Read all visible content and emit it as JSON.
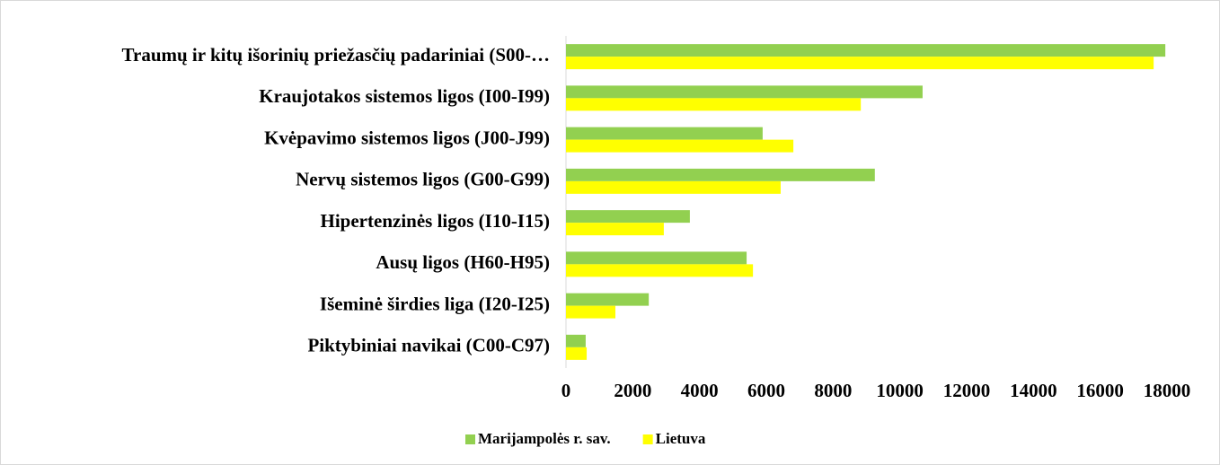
{
  "chart_data": {
    "type": "bar",
    "orientation": "horizontal",
    "categories": [
      "Traumų ir kitų išorinių priežasčių padariniai (S00-…",
      "Kraujotakos sistemos ligos (I00-I99)",
      "Kvėpavimo sistemos ligos (J00-J99)",
      "Nervų sistemos ligos (G00-G99)",
      "Hipertenzinės ligos (I10-I15)",
      "Ausų ligos (H60-H95)",
      "Išeminė širdies liga (I20-I25)",
      "Piktybiniai navikai (C00-C97)"
    ],
    "series": [
      {
        "name": "Marijampolės r. sav.",
        "color": "#92d050",
        "values": [
          17950,
          10680,
          5890,
          9250,
          3710,
          5410,
          2480,
          590
        ]
      },
      {
        "name": "Lietuva",
        "color": "#ffff00",
        "values": [
          17600,
          8830,
          6810,
          6430,
          2930,
          5600,
          1480,
          620
        ]
      }
    ],
    "xlim": [
      0,
      18000
    ],
    "xticks": [
      0,
      2000,
      4000,
      6000,
      8000,
      10000,
      12000,
      14000,
      16000,
      18000
    ],
    "grid": false,
    "legend": "bottom"
  }
}
